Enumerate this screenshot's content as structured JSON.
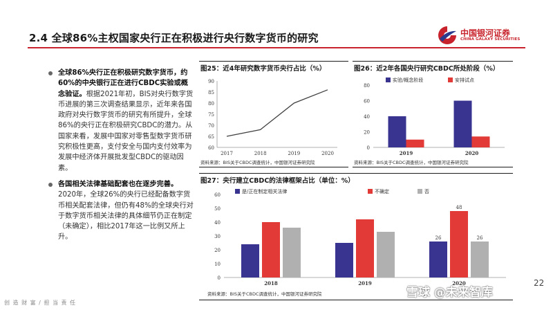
{
  "header": {
    "title": "2.4  全球86%主权国家央行正在积极进行央行数字货币的研究",
    "logo_cn": "中国银河证券",
    "logo_en": "CHINA GALAXY SECURITIES"
  },
  "bullets": [
    {
      "bold": "全球86%央行正在积极研究数字货币，约60%的中央银行正在进行CBDC实验或概念验证。",
      "text": "根据2021年初，BIS对央行数字货币进展的第三次调查结果显示，近年来各国政府对央行数字货币的研究有所提升，全球86%的央行正在积极研究CBDC的潜力。从国家来看，发展中国家对零售型数字货币研究积极性更高，支付安全与国内支付效率为发展中经济体开展批发型CBDC的驱动因素。"
    },
    {
      "bold": "各国相关法律基础配套也在逐步完善。",
      "text": "2020年，全球26%的央行已经配备数字货币相关配套法律，但仍有48%的全球央行对于数字货币相关法律的具体细节仍正在制定（未确定），相比2017年这一比例又所上升。"
    }
  ],
  "chart25": {
    "label": "图25：近4年研究数字货币央行占比（%）",
    "source": "资料来源：BIS关于CBDC调查统计，中国银河证券研究院"
  },
  "chart26": {
    "label": "图26：近2年各国央行研究CBDC所处阶段（%）",
    "source": "资料来源：BIS关于CBDC调查统计，中国银河证券研究院"
  },
  "chart27": {
    "label": "图27：央行建立CBDC的法律框架占比（单位：%）",
    "source": "资料来源：BIS关于CBDC调查统计，中国银河证券研究院"
  },
  "chart_data": [
    {
      "type": "line",
      "title": "近4年研究数字货币央行占比（%）",
      "categories": [
        "2017",
        "2018",
        "2019",
        "2020"
      ],
      "values": [
        65,
        68,
        80,
        86
      ],
      "ylim": [
        60,
        90
      ],
      "yticks": [
        "60",
        "65",
        "70",
        "75",
        "80",
        "85",
        "90"
      ],
      "color": "#404040"
    },
    {
      "type": "bar",
      "title": "近2年各国央行研究CBDC所处阶段（%）",
      "categories": [
        "2019",
        "2020"
      ],
      "series": [
        {
          "name": "实验/概念阶段",
          "values": [
            40,
            60
          ],
          "color": "#3a3491"
        },
        {
          "name": "安排试点",
          "values": [
            10,
            14
          ],
          "color": "#e23a37"
        }
      ],
      "ylim": [
        0,
        80
      ],
      "yticks": [
        "0",
        "20",
        "40",
        "60",
        "80"
      ]
    },
    {
      "type": "bar",
      "title": "央行建立CBDC的法律框架占比（单位：%）",
      "categories": [
        "2018",
        "2019",
        "2020"
      ],
      "series": [
        {
          "name": "是/正在制定相关法律",
          "values": [
            24,
            25,
            26
          ],
          "color": "#3a3491"
        },
        {
          "name": "不确定",
          "values": [
            40,
            42,
            48
          ],
          "color": "#e23a37"
        },
        {
          "name": "否",
          "values": [
            36,
            33,
            26
          ],
          "color": "#b0b0b0"
        }
      ],
      "data_labels": {
        "2020": [
          "26",
          "48",
          "26"
        ]
      },
      "ylim": [
        0,
        60
      ],
      "yticks": [
        "0",
        "10",
        "20",
        "30",
        "40",
        "50",
        "60"
      ]
    }
  ],
  "footer": {
    "left": "创 造 财 富 / 担 当 责 任",
    "page": "22",
    "watermark": "雪球 @未来智库"
  }
}
